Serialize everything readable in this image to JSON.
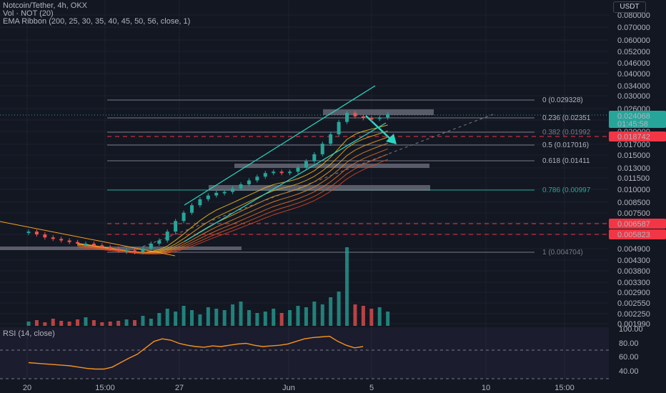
{
  "legend": {
    "title": "Notcoin/Tether, 4h, OKX",
    "vol": "Vol · NOT (20)",
    "ema": "EMA Ribbon (200, 25, 30, 35, 40, 45, 50, 56, close, 1)",
    "rsi": "RSI (14, close)"
  },
  "currency": "USDT",
  "price_axis": [
    "0.080000",
    "0.070000",
    "0.060000",
    "0.052000",
    "0.046000",
    "0.040000",
    "0.034000",
    "0.030000",
    "0.026000",
    "0.023000",
    "0.020000",
    "0.017000",
    "0.015000",
    "0.013000",
    "0.011500",
    "0.010000",
    "0.008500",
    "0.007500",
    "0.006500",
    "0.005500",
    "0.004900",
    "0.004300",
    "0.003800",
    "0.003300",
    "0.002900",
    "0.002550",
    "0.002250",
    "0.001990"
  ],
  "price_badges": {
    "last_price": "0.024068",
    "countdown": "01:45:58",
    "level_a": "0.018742",
    "level_b": "0.006587",
    "level_c": "0.005823"
  },
  "fib_levels": [
    {
      "label": "0 (0.029328)"
    },
    {
      "label": "0.236 (0.02351"
    },
    {
      "label": "0.382 (0.01992"
    },
    {
      "label": "0.5 (0.017016)"
    },
    {
      "label": "0.618 (0.01411"
    },
    {
      "label": "0.786 (0.00997"
    },
    {
      "label": "1 (0.004704)"
    }
  ],
  "rsi_axis": [
    "100.00",
    "80.00",
    "60.00",
    "40.00"
  ],
  "time_axis": [
    "20",
    "15:00",
    "27",
    "Jun",
    "5",
    "10",
    "15:00"
  ],
  "colors": {
    "background": "#131722",
    "up": "#26a69a",
    "down": "#ef5350",
    "fib": "#787b86",
    "channel": "#2ad7c4",
    "ema": "#f7a21b",
    "rsi": "#f7931a",
    "red_dashed": "#f23645"
  },
  "chart_data": [
    {
      "type": "line",
      "name": "candles (close)",
      "x_ticks": [
        "20",
        "15:00",
        "27",
        "Jun",
        "5",
        "10",
        "15:00"
      ],
      "y_ticks": [
        "0.080000",
        "0.052000",
        "0.030000",
        "0.020000",
        "0.013000",
        "0.010000",
        "0.0065",
        "0.0049",
        "0.0033",
        "0.001990"
      ],
      "values": [
        0.006,
        0.0058,
        0.0056,
        0.0055,
        0.0054,
        0.0053,
        0.0052,
        0.0052,
        0.0051,
        0.005,
        0.0049,
        0.0048,
        0.0048,
        0.0047,
        0.0049,
        0.0052,
        0.0054,
        0.006,
        0.0068,
        0.0075,
        0.0082,
        0.0088,
        0.0092,
        0.0095,
        0.0096,
        0.01,
        0.0105,
        0.011,
        0.0115,
        0.012,
        0.0122,
        0.012,
        0.0122,
        0.0128,
        0.0138,
        0.015,
        0.017,
        0.019,
        0.022,
        0.0245,
        0.0235,
        0.023,
        0.0228,
        0.0232,
        0.0241
      ]
    },
    {
      "type": "line",
      "name": "RSI (14, close)",
      "ylim": [
        20,
        100
      ],
      "values": [
        45,
        44,
        43,
        42,
        41,
        40,
        38,
        36,
        35,
        35,
        38,
        45,
        52,
        58,
        68,
        78,
        82,
        80,
        75,
        72,
        70,
        69,
        71,
        70,
        72,
        74,
        75,
        72,
        70,
        71,
        72,
        74,
        78,
        82,
        84,
        85,
        86,
        78,
        72,
        68,
        70
      ]
    }
  ]
}
